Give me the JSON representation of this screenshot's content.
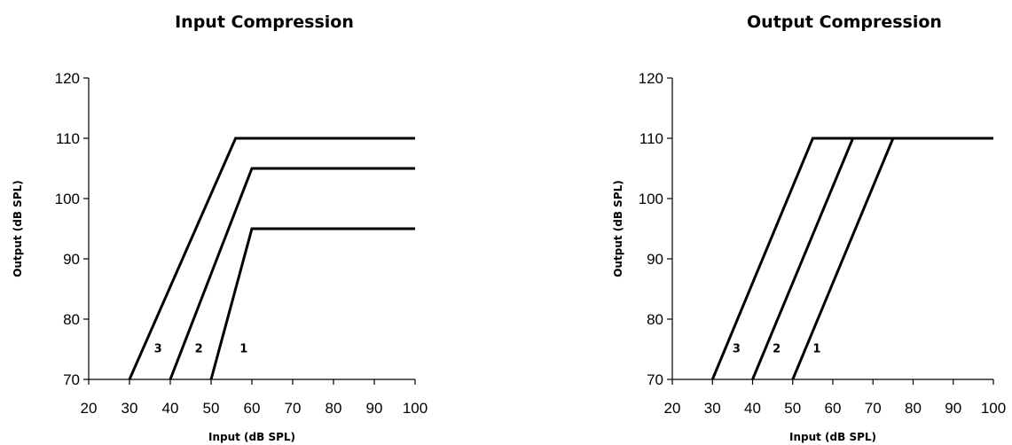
{
  "chart_data": [
    {
      "type": "line",
      "title": "Input Compression",
      "xlabel": "Input (dB SPL)",
      "ylabel": "Output (dB SPL)",
      "xlim": [
        20,
        100
      ],
      "ylim": [
        70,
        120
      ],
      "xticks": [
        20,
        30,
        40,
        50,
        60,
        70,
        80,
        90,
        100
      ],
      "yticks": [
        70,
        80,
        90,
        100,
        110,
        120
      ],
      "grid": false,
      "series": [
        {
          "label": "3",
          "x": [
            30,
            56,
            100
          ],
          "y": [
            70,
            110,
            110
          ]
        },
        {
          "label": "2",
          "x": [
            40,
            60,
            100
          ],
          "y": [
            70,
            105,
            105
          ]
        },
        {
          "label": "1",
          "x": [
            50,
            60,
            100
          ],
          "y": [
            70,
            95,
            95
          ]
        }
      ],
      "annotations": [
        {
          "text": "3",
          "x": 37,
          "y": 74.5
        },
        {
          "text": "2",
          "x": 47,
          "y": 74.5
        },
        {
          "text": "1",
          "x": 58,
          "y": 74.5
        }
      ]
    },
    {
      "type": "line",
      "title": "Output Compression",
      "xlabel": "Input (dB SPL)",
      "ylabel": "Output (dB SPL)",
      "xlim": [
        20,
        100
      ],
      "ylim": [
        70,
        120
      ],
      "xticks": [
        20,
        30,
        40,
        50,
        60,
        70,
        80,
        90,
        100
      ],
      "yticks": [
        70,
        80,
        90,
        100,
        110,
        120
      ],
      "grid": false,
      "series": [
        {
          "label": "3",
          "x": [
            30,
            55,
            100
          ],
          "y": [
            70,
            110,
            110
          ]
        },
        {
          "label": "2",
          "x": [
            40,
            65,
            100
          ],
          "y": [
            70,
            110,
            110
          ]
        },
        {
          "label": "1",
          "x": [
            50,
            75,
            100
          ],
          "y": [
            70,
            110,
            110
          ]
        }
      ],
      "annotations": [
        {
          "text": "3",
          "x": 36,
          "y": 74.5
        },
        {
          "text": "2",
          "x": 46,
          "y": 74.5
        },
        {
          "text": "1",
          "x": 56,
          "y": 74.5
        }
      ]
    }
  ]
}
